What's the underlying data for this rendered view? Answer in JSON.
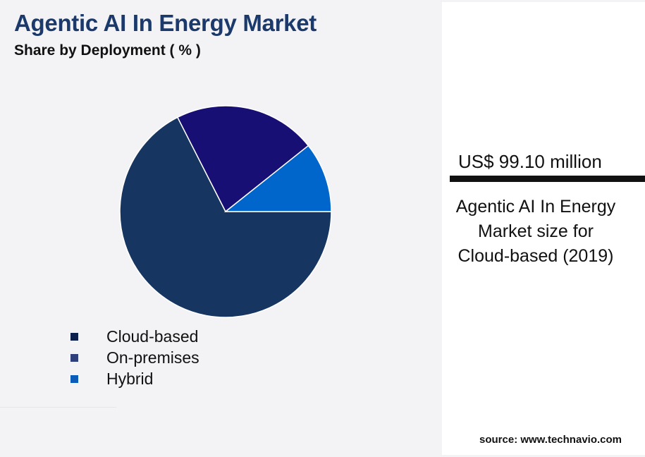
{
  "header": {
    "title": "Agentic AI In Energy Market",
    "subtitle": "Share by Deployment ( % )"
  },
  "chart_data": {
    "type": "pie",
    "title": "Agentic AI In Energy Market",
    "subtitle": "Share by Deployment ( % )",
    "categories": [
      "Cloud-based",
      "On-premises",
      "Hybrid"
    ],
    "values": [
      67.5,
      21.8,
      10.7
    ],
    "slice_colors": [
      "#163560",
      "#170f73",
      "#0066cc"
    ],
    "legend_colors": [
      "#0d1f4d",
      "#2e3f7c",
      "#0a5cb8"
    ],
    "start_angle": "east, clockwise",
    "legend_placement": "bottom-left"
  },
  "callout": {
    "value": "US$ 99.10 million",
    "description": "Agentic AI In Energy Market size for Cloud-based (2019)"
  },
  "source": "source: www.technavio.com"
}
